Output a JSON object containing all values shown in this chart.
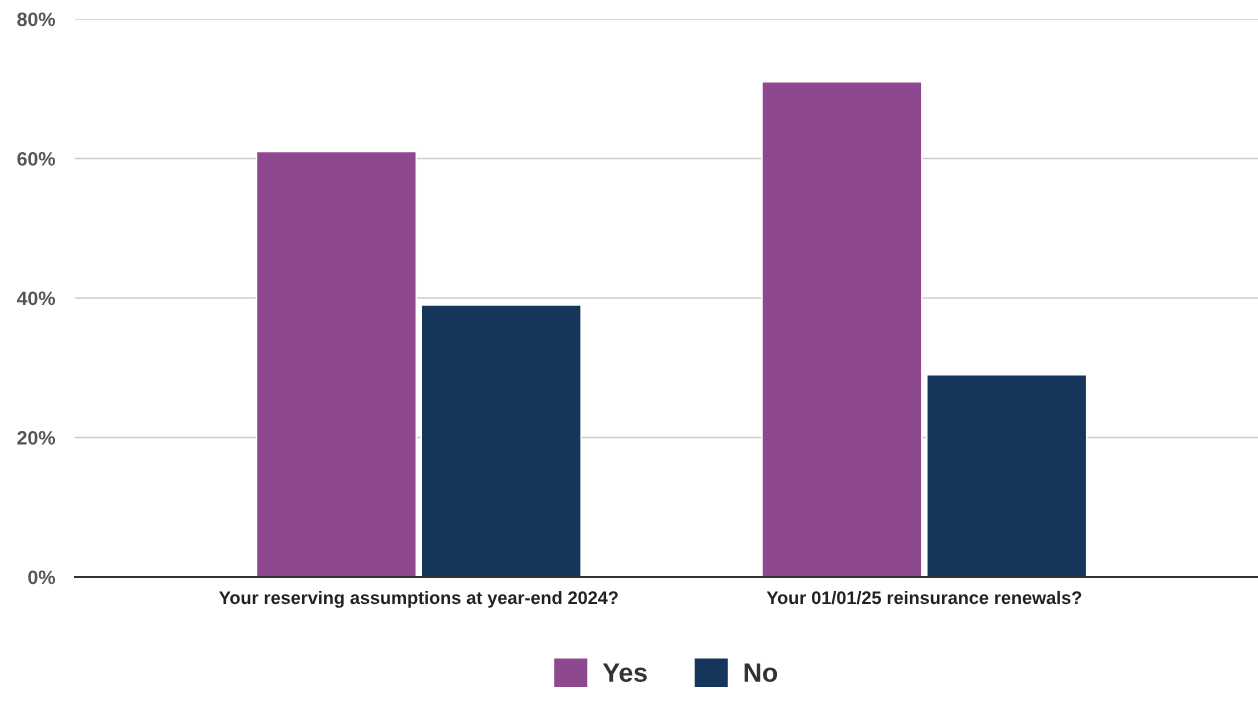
{
  "chart_data": {
    "type": "bar",
    "categories": [
      "Your reserving assumptions at year-end 2024?",
      "Your 01/01/25 reinsurance renewals?"
    ],
    "series": [
      {
        "name": "Yes",
        "color": "#8e4890",
        "values": [
          61,
          71
        ]
      },
      {
        "name": "No",
        "color": "#15355a",
        "values": [
          39,
          29
        ]
      }
    ],
    "ylim": [
      0,
      80
    ],
    "yticks": [
      {
        "value": 0,
        "label": "0%"
      },
      {
        "value": 20,
        "label": "20%"
      },
      {
        "value": 40,
        "label": "40%"
      },
      {
        "value": 60,
        "label": "60%"
      },
      {
        "value": 80,
        "label": "80%"
      }
    ],
    "grid": "y",
    "legend": "bottom"
  }
}
